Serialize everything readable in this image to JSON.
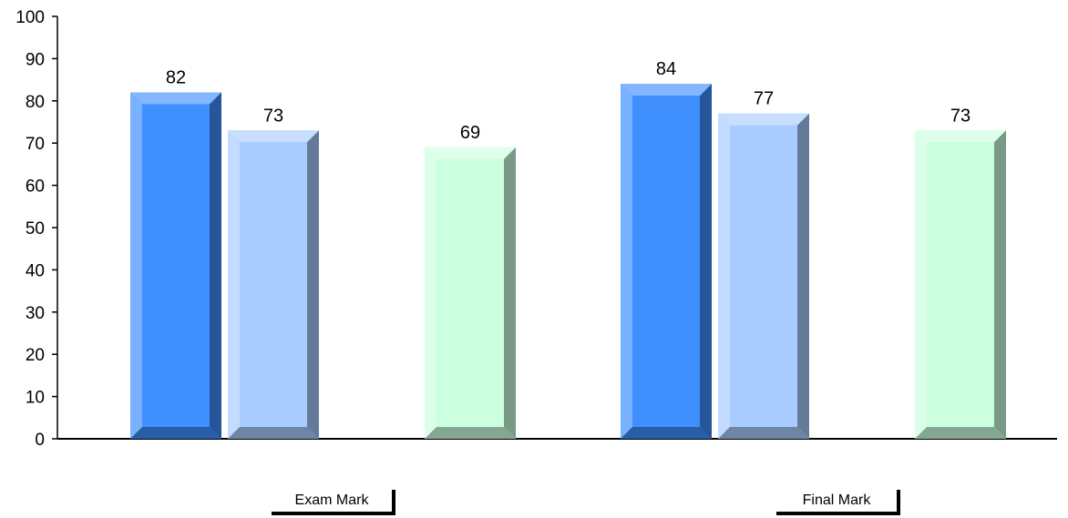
{
  "chart_data": {
    "type": "bar",
    "categories": [
      "Exam Mark",
      "Final Mark"
    ],
    "series": [
      {
        "values": [
          82,
          84
        ],
        "color": "#3f8fff"
      },
      {
        "values": [
          73,
          77
        ],
        "color": "#a9ccff"
      },
      {
        "values": [
          69,
          73
        ],
        "color": "#ccffe0"
      }
    ],
    "ylim": [
      0,
      100
    ],
    "yticks": [
      0,
      10,
      20,
      30,
      40,
      50,
      60,
      70,
      80,
      90,
      100
    ],
    "grid": false,
    "legend": "none"
  }
}
